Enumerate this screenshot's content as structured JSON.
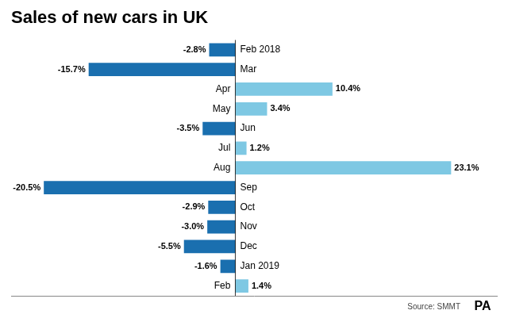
{
  "chart_data": {
    "type": "bar",
    "orientation": "horizontal",
    "title": "Sales of new cars in UK",
    "annotations": [
      "Source: SMMT",
      "PA"
    ],
    "categories": [
      "Feb 2018",
      "Mar",
      "Apr",
      "May",
      "Jun",
      "Jul",
      "Aug",
      "Sep",
      "Oct",
      "Nov",
      "Dec",
      "Jan 2019",
      "Feb"
    ],
    "values": [
      -2.8,
      -15.7,
      10.4,
      3.4,
      -3.5,
      1.2,
      23.1,
      -20.5,
      -2.9,
      -3.0,
      -5.5,
      -1.6,
      1.4
    ],
    "value_labels": [
      "-2.8%",
      "-15.7%",
      "10.4%",
      "3.4%",
      "-3.5%",
      "1.2%",
      "23.1%",
      "-20.5%",
      "-2.9%",
      "-3.0%",
      "-5.5%",
      "-1.6%",
      "1.4%"
    ],
    "colors": [
      "#1a6faf",
      "#1a6faf",
      "#7ec8e3",
      "#7ec8e3",
      "#1a6faf",
      "#7ec8e3",
      "#7ec8e3",
      "#1a6faf",
      "#1a6faf",
      "#1a6faf",
      "#1a6faf",
      "#1a6faf",
      "#7ec8e3"
    ],
    "xlim": [
      -24,
      28
    ],
    "data_labels": true,
    "tick_labels": false,
    "grid": false
  }
}
